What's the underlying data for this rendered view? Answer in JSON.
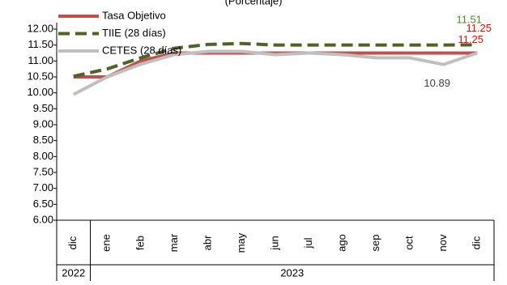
{
  "chart_data": {
    "type": "line",
    "subtitle": "(Porcentaje)",
    "categories": [
      "dic",
      "ene",
      "feb",
      "mar",
      "abr",
      "may",
      "jun",
      "jul",
      "ago",
      "sep",
      "oct",
      "nov",
      "dic"
    ],
    "groups": [
      {
        "label": "2022",
        "span": 1
      },
      {
        "label": "2023",
        "span": 12
      }
    ],
    "ylim": [
      6,
      12
    ],
    "yticks": [
      {
        "value": 6,
        "label": "6.00"
      },
      {
        "value": 6.5,
        "label": "6.50"
      },
      {
        "value": 7,
        "label": "7.00"
      },
      {
        "value": 7.5,
        "label": "7.50"
      },
      {
        "value": 8,
        "label": "8.00"
      },
      {
        "value": 8.5,
        "label": "8.50"
      },
      {
        "value": 9,
        "label": "9.00"
      },
      {
        "value": 9.5,
        "label": "9.50"
      },
      {
        "value": 10,
        "label": "10.00"
      },
      {
        "value": 10.5,
        "label": "10.50"
      },
      {
        "value": 11,
        "label": "11.00"
      },
      {
        "value": 11.5,
        "label": "11.50"
      },
      {
        "value": 12,
        "label": "12.00"
      }
    ],
    "legend": "upper left",
    "series": [
      {
        "name": "Tasa Objetivo",
        "color": "#c0504d",
        "dash": false,
        "values": [
          10.5,
          10.5,
          11,
          11.25,
          11.25,
          11.25,
          11.25,
          11.25,
          11.25,
          11.25,
          11.25,
          11.25,
          11.25
        ],
        "value_labels": [
          null,
          null,
          null,
          null,
          null,
          null,
          null,
          null,
          null,
          null,
          null,
          null,
          "11.25"
        ],
        "value_label_colors": [
          null,
          null,
          null,
          null,
          null,
          null,
          null,
          null,
          null,
          null,
          null,
          null,
          "#ff0000"
        ]
      },
      {
        "name": "TIIE (28 días)",
        "color": "#4f6228",
        "dash": true,
        "values": [
          10.52,
          10.75,
          11.1,
          11.4,
          11.52,
          11.55,
          11.5,
          11.5,
          11.5,
          11.5,
          11.5,
          11.5,
          11.51
        ],
        "value_labels": [
          null,
          null,
          null,
          null,
          null,
          null,
          null,
          null,
          null,
          null,
          null,
          null,
          "11.51"
        ],
        "value_label_colors": [
          null,
          null,
          null,
          null,
          null,
          null,
          null,
          null,
          null,
          null,
          null,
          null,
          "#4f8a28"
        ]
      },
      {
        "name": "CETES (28 días)",
        "color": "#bfbfbf",
        "dash": false,
        "values": [
          9.95,
          10.5,
          10.9,
          11.2,
          11.3,
          11.3,
          11.2,
          11.25,
          11.2,
          11.1,
          11.1,
          10.89,
          11.25
        ],
        "value_labels": [
          null,
          null,
          null,
          null,
          null,
          null,
          null,
          null,
          null,
          null,
          null,
          "10.89",
          "11.25"
        ],
        "value_label_colors": [
          null,
          null,
          null,
          null,
          null,
          null,
          null,
          null,
          null,
          null,
          null,
          "#404040",
          "#ff0000"
        ]
      }
    ]
  }
}
